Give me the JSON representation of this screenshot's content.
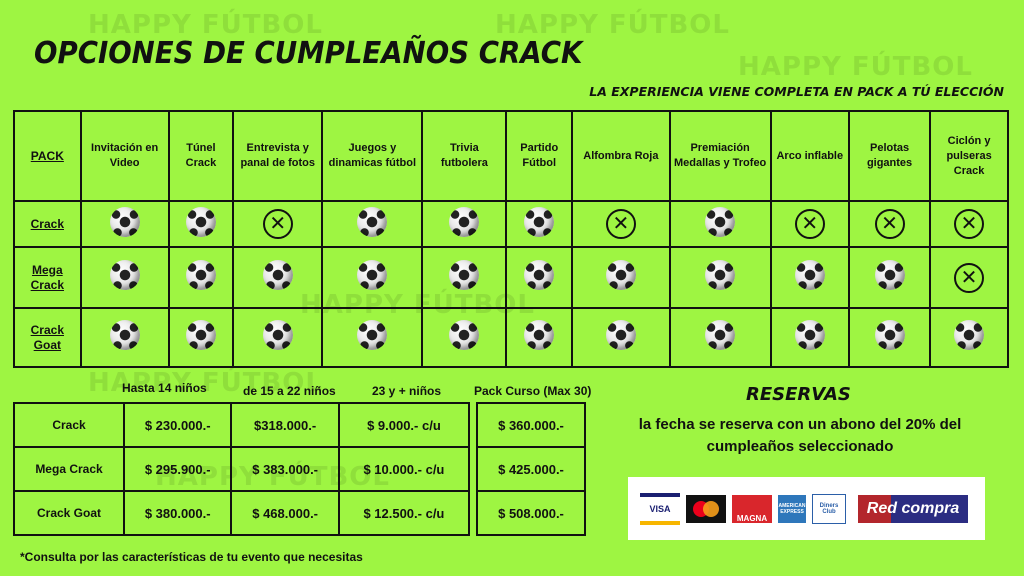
{
  "watermark": "HAPPY FÚTBOL",
  "title": "OPCIONES DE CUMPLEAÑOS CRACK",
  "subtitle": "LA EXPERIENCIA VIENE COMPLETA EN PACK A TÚ ELECCIÓN",
  "features_table": {
    "headers": [
      "PACK",
      "Invitación en Video",
      "Túnel Crack",
      "Entrevista y panal de fotos",
      "Juegos y dinamicas fútbol",
      "Trivia futbolera",
      "Partido Fútbol",
      "Alfombra Roja",
      "Premiación Medallas y Trofeo",
      "Arco inflable",
      "Pelotas gigantes",
      "Ciclón y pulseras Crack"
    ],
    "rows": [
      {
        "pack": "Crack",
        "included": [
          true,
          true,
          false,
          true,
          true,
          true,
          false,
          true,
          false,
          false,
          false
        ]
      },
      {
        "pack": "Mega Crack",
        "included": [
          true,
          true,
          true,
          true,
          true,
          true,
          true,
          true,
          true,
          true,
          false
        ]
      },
      {
        "pack": "Crack Goat",
        "included": [
          true,
          true,
          true,
          true,
          true,
          true,
          true,
          true,
          true,
          true,
          true
        ]
      }
    ],
    "included_icon": "soccer-ball-icon",
    "excluded_icon": "circle-x-icon"
  },
  "price_table": {
    "headers": [
      "Hasta 14 niños",
      "de 15 a 22 niños",
      "23 y + niños",
      "Pack Curso (Max 30)"
    ],
    "rows": [
      {
        "pack": "Crack",
        "prices": [
          "$ 230.000.-",
          "$318.000.-",
          "$ 9.000.- c/u",
          "$ 360.000.-"
        ]
      },
      {
        "pack": "Mega Crack",
        "prices": [
          "$ 295.900.-",
          "$ 383.000.-",
          "$ 10.000.- c/u",
          "$ 425.000.-"
        ]
      },
      {
        "pack": "Crack Goat",
        "prices": [
          "$ 380.000.-",
          "$ 468.000.-",
          "$ 12.500.- c/u",
          "$ 508.000.-"
        ]
      }
    ]
  },
  "reservas": {
    "title": "RESERVAS",
    "text": "la fecha se reserva con un abono del 20%  del cumpleaños seleccionado"
  },
  "payments": [
    "VISA",
    "mastercard",
    "MAGNA",
    "AMERICAN EXPRESS",
    "Diners Club",
    "Red compra"
  ],
  "note": "*Consulta por las características de tu evento que necesitas",
  "colors": {
    "background": "#9ef542",
    "text": "#111111"
  }
}
